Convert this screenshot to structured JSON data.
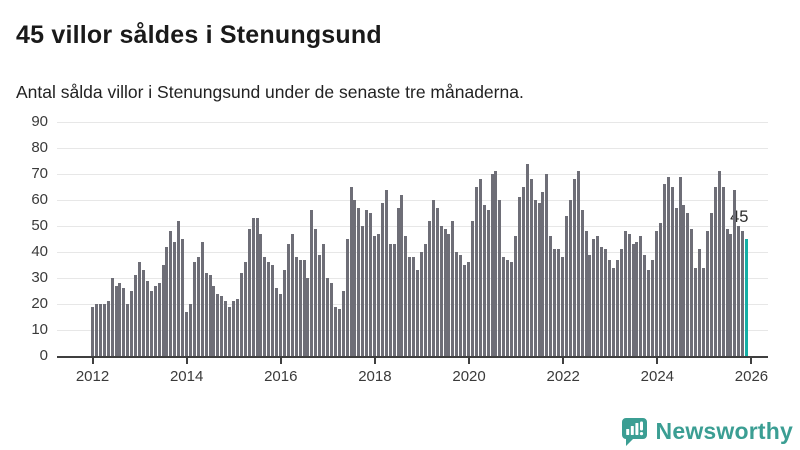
{
  "header": {
    "title": "45 villor såldes i Stenungsund",
    "subtitle": "Antal sålda villor i Stenungsund under de senaste tre månaderna."
  },
  "annotation": {
    "value_label": "45"
  },
  "footer": {
    "brand": "Newsworthy"
  },
  "chart_data": {
    "type": "bar",
    "title": "45 villor såldes i Stenungsund",
    "subtitle": "Antal sålda villor i Stenungsund under de senaste tre månaderna.",
    "x_start": "2012-01",
    "x_end": "2025-12",
    "x_frequency": "monthly",
    "x_tick_labels": [
      "2012",
      "2014",
      "2016",
      "2018",
      "2020",
      "2022",
      "2024",
      "2026"
    ],
    "y_ticks": [
      0,
      10,
      20,
      30,
      40,
      50,
      60,
      70,
      80,
      90
    ],
    "ylim": [
      0,
      90
    ],
    "grid": "horizontal",
    "legend": "none",
    "bar_color": "#6e6e77",
    "highlight_color": "#14b0a6",
    "highlight": {
      "month": "2025-12",
      "value": 45,
      "label": "45"
    },
    "series": [
      {
        "name": "Antal sålda villor, senaste tre månaderna",
        "values": [
          19,
          20,
          20,
          20,
          21,
          30,
          27,
          28,
          26,
          20,
          25,
          31,
          36,
          33,
          29,
          25,
          27,
          28,
          35,
          42,
          48,
          44,
          52,
          45,
          17,
          20,
          36,
          38,
          44,
          32,
          31,
          27,
          24,
          23,
          21,
          19,
          21,
          22,
          32,
          36,
          49,
          53,
          53,
          47,
          38,
          36,
          35,
          26,
          24,
          33,
          43,
          47,
          38,
          37,
          37,
          30,
          56,
          49,
          39,
          43,
          30,
          28,
          19,
          18,
          25,
          45,
          65,
          60,
          57,
          50,
          56,
          55,
          46,
          47,
          59,
          64,
          43,
          43,
          57,
          62,
          46,
          38,
          38,
          33,
          40,
          43,
          52,
          60,
          57,
          50,
          49,
          47,
          52,
          40,
          39,
          35,
          36,
          52,
          65,
          68,
          58,
          56,
          70,
          71,
          60,
          38,
          37,
          36,
          46,
          61,
          65,
          74,
          68,
          60,
          59,
          63,
          70,
          46,
          41,
          41,
          38,
          54,
          60,
          68,
          71,
          56,
          48,
          39,
          45,
          46,
          42,
          41,
          37,
          34,
          37,
          41,
          48,
          47,
          43,
          44,
          46,
          39,
          33,
          37,
          48,
          51,
          66,
          69,
          65,
          57,
          69,
          58,
          55,
          49,
          34,
          41,
          34,
          48,
          55,
          65,
          71,
          65,
          49,
          47,
          64,
          50,
          48,
          45
        ]
      }
    ]
  }
}
